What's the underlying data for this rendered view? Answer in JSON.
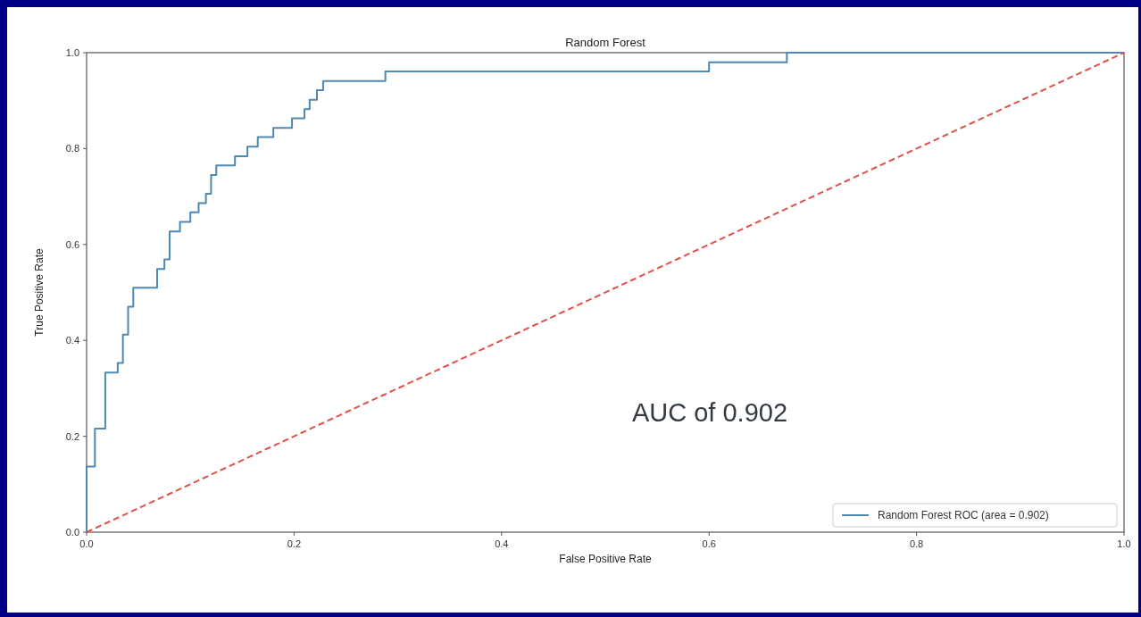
{
  "chart_data": {
    "type": "step",
    "title": "Random Forest",
    "xlabel": "False Positive Rate",
    "ylabel": "True Positive Rate",
    "xlim": [
      0,
      1
    ],
    "ylim": [
      0,
      1
    ],
    "xticks": [
      {
        "value": 0,
        "label": "0.0"
      },
      {
        "value": 0.2,
        "label": "0.2"
      },
      {
        "value": 0.4,
        "label": "0.4"
      },
      {
        "value": 0.6,
        "label": "0.6"
      },
      {
        "value": 0.8,
        "label": "0.8"
      },
      {
        "value": 1,
        "label": "1.0"
      }
    ],
    "yticks": [
      {
        "value": 0,
        "label": "0.0"
      },
      {
        "value": 0.2,
        "label": "0.2"
      },
      {
        "value": 0.4,
        "label": "0.4"
      },
      {
        "value": 0.6,
        "label": "0.6"
      },
      {
        "value": 0.8,
        "label": "0.8"
      },
      {
        "value": 1,
        "label": "1.0"
      }
    ],
    "legend": "bottom right",
    "annotations": [
      "AUC of 0.902"
    ],
    "series": [
      {
        "name": "Random Forest ROC (area = 0.902)",
        "color": "#4f88b0",
        "x": [
          0,
          0,
          0.008,
          0.018,
          0.03,
          0.035,
          0.04,
          0.045,
          0.068,
          0.075,
          0.08,
          0.09,
          0.1,
          0.108,
          0.115,
          0.12,
          0.125,
          0.143,
          0.155,
          0.165,
          0.18,
          0.198,
          0.21,
          0.215,
          0.222,
          0.228,
          0.288,
          0.6,
          0.675,
          1
        ],
        "values": [
          0,
          0.137,
          0.216,
          0.333,
          0.353,
          0.412,
          0.47,
          0.51,
          0.549,
          0.569,
          0.627,
          0.647,
          0.667,
          0.686,
          0.706,
          0.745,
          0.765,
          0.784,
          0.804,
          0.824,
          0.843,
          0.863,
          0.882,
          0.902,
          0.922,
          0.941,
          0.961,
          0.98,
          1,
          1
        ]
      },
      {
        "type": "line",
        "color": "#e0504a",
        "line_style": "dashed",
        "x": [
          0,
          1
        ],
        "values": [
          0,
          1
        ]
      }
    ]
  }
}
